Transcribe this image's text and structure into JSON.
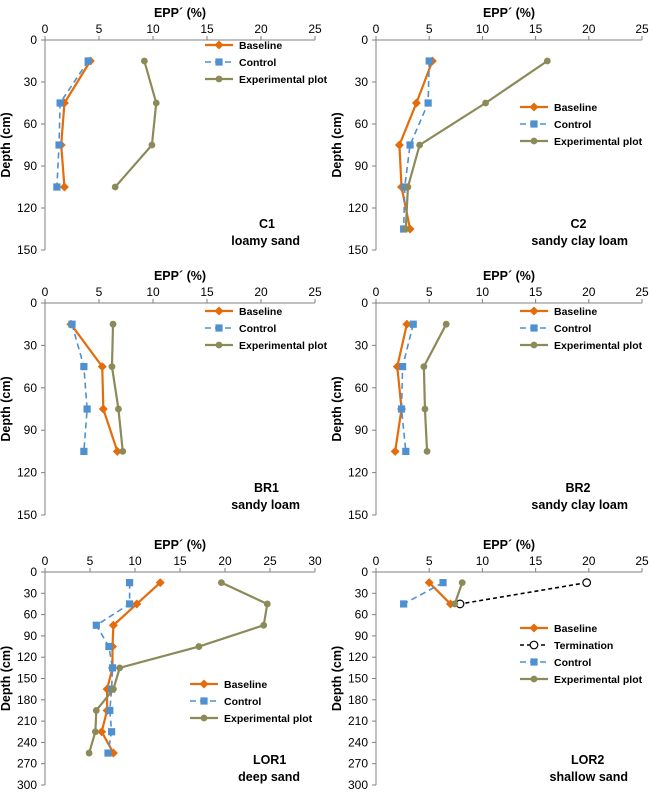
{
  "figure": {
    "x_axis_title": "EPP´ (%)",
    "y_axis_title": "Depth (cm)"
  },
  "colors": {
    "baseline": "#E46C0A",
    "control": "#4F90D1",
    "experimental": "#8B8A58",
    "termination": "#000000",
    "axis": "#808080"
  },
  "legend_labels": {
    "baseline": "Baseline",
    "control": "Control",
    "experimental": "Experimental plot",
    "termination": "Termination"
  },
  "chart_data": [
    {
      "type": "line",
      "id": "C1",
      "site": "C1",
      "soil": "loamy sand",
      "xlabel": "EPP´ (%)",
      "ylabel": "Depth (cm)",
      "xlim": [
        0,
        25
      ],
      "x_ticks": [
        0,
        5,
        10,
        15,
        20,
        25
      ],
      "ylim": [
        0,
        150
      ],
      "y_ticks": [
        0,
        30,
        60,
        90,
        120,
        150
      ],
      "legend": "top-right",
      "series": [
        {
          "name": "Baseline",
          "key": "baseline",
          "style": "solid",
          "marker": "diamond",
          "points": [
            [
              4.2,
              15
            ],
            [
              1.8,
              45
            ],
            [
              1.5,
              75
            ],
            [
              1.8,
              105
            ]
          ]
        },
        {
          "name": "Control",
          "key": "control",
          "style": "dashed",
          "marker": "square",
          "points": [
            [
              4.0,
              15
            ],
            [
              1.4,
              45
            ],
            [
              1.3,
              75
            ],
            [
              1.1,
              105
            ]
          ]
        },
        {
          "name": "Experimental plot",
          "key": "experimental",
          "style": "solid",
          "marker": "circle",
          "points": [
            [
              9.2,
              15
            ],
            [
              10.3,
              45
            ],
            [
              9.9,
              75
            ],
            [
              6.5,
              105
            ]
          ]
        }
      ]
    },
    {
      "type": "line",
      "id": "C2",
      "site": "C2",
      "soil": "sandy clay loam",
      "xlabel": "EPP´ (%)",
      "ylabel": "Depth (cm)",
      "xlim": [
        0,
        25
      ],
      "x_ticks": [
        0,
        5,
        10,
        15,
        20,
        25
      ],
      "ylim": [
        0,
        150
      ],
      "y_ticks": [
        0,
        30,
        60,
        90,
        120,
        150
      ],
      "legend": "middle-right",
      "series": [
        {
          "name": "Baseline",
          "key": "baseline",
          "style": "solid",
          "marker": "diamond",
          "points": [
            [
              5.3,
              15
            ],
            [
              3.8,
              45
            ],
            [
              2.2,
              75
            ],
            [
              2.4,
              105
            ],
            [
              3.2,
              135
            ]
          ]
        },
        {
          "name": "Control",
          "key": "control",
          "style": "dashed",
          "marker": "square",
          "points": [
            [
              5.0,
              15
            ],
            [
              4.9,
              45
            ],
            [
              3.2,
              75
            ],
            [
              2.7,
              105
            ],
            [
              2.6,
              135
            ]
          ]
        },
        {
          "name": "Experimental plot",
          "key": "experimental",
          "style": "solid",
          "marker": "circle",
          "points": [
            [
              16.1,
              15
            ],
            [
              10.3,
              45
            ],
            [
              4.1,
              75
            ],
            [
              3.0,
              105
            ],
            [
              2.8,
              135
            ]
          ]
        }
      ]
    },
    {
      "type": "line",
      "id": "BR1",
      "site": "BR1",
      "soil": "sandy loam",
      "xlabel": "EPP´ (%)",
      "ylabel": "Depth (cm)",
      "xlim": [
        0,
        25
      ],
      "x_ticks": [
        0,
        5,
        10,
        15,
        20,
        25
      ],
      "ylim": [
        0,
        150
      ],
      "y_ticks": [
        0,
        30,
        60,
        90,
        120,
        150
      ],
      "legend": "top-right",
      "series": [
        {
          "name": "Baseline",
          "key": "baseline",
          "style": "solid",
          "marker": "diamond",
          "points": [
            [
              2.4,
              15
            ],
            [
              5.3,
              45
            ],
            [
              5.4,
              75
            ],
            [
              6.7,
              105
            ]
          ]
        },
        {
          "name": "Control",
          "key": "control",
          "style": "dashed",
          "marker": "square",
          "points": [
            [
              2.5,
              15
            ],
            [
              3.6,
              45
            ],
            [
              3.9,
              75
            ],
            [
              3.6,
              105
            ]
          ]
        },
        {
          "name": "Experimental plot",
          "key": "experimental",
          "style": "solid",
          "marker": "circle",
          "points": [
            [
              6.3,
              15
            ],
            [
              6.2,
              45
            ],
            [
              6.8,
              75
            ],
            [
              7.2,
              105
            ]
          ]
        }
      ]
    },
    {
      "type": "line",
      "id": "BR2",
      "site": "BR2",
      "soil": "sandy clay loam",
      "xlabel": "EPP´ (%)",
      "ylabel": "Depth (cm)",
      "xlim": [
        0,
        25
      ],
      "x_ticks": [
        0,
        5,
        10,
        15,
        20,
        25
      ],
      "ylim": [
        0,
        150
      ],
      "y_ticks": [
        0,
        30,
        60,
        90,
        120,
        150
      ],
      "legend": "top-right",
      "series": [
        {
          "name": "Baseline",
          "key": "baseline",
          "style": "solid",
          "marker": "diamond",
          "points": [
            [
              2.9,
              15
            ],
            [
              2.0,
              45
            ],
            [
              2.4,
              75
            ],
            [
              1.8,
              105
            ]
          ]
        },
        {
          "name": "Control",
          "key": "control",
          "style": "dashed",
          "marker": "square",
          "points": [
            [
              3.5,
              15
            ],
            [
              2.5,
              45
            ],
            [
              2.4,
              75
            ],
            [
              2.8,
              105
            ]
          ]
        },
        {
          "name": "Experimental plot",
          "key": "experimental",
          "style": "solid",
          "marker": "circle",
          "points": [
            [
              6.6,
              15
            ],
            [
              4.5,
              45
            ],
            [
              4.6,
              75
            ],
            [
              4.8,
              105
            ]
          ]
        }
      ]
    },
    {
      "type": "line",
      "id": "LOR1",
      "site": "LOR1",
      "soil": "deep sand",
      "xlabel": "EPP´ (%)",
      "ylabel": "Depth (cm)",
      "xlim": [
        0,
        30
      ],
      "x_ticks": [
        0,
        5,
        10,
        15,
        20,
        25,
        30
      ],
      "ylim": [
        0,
        300
      ],
      "y_ticks": [
        0,
        30,
        60,
        90,
        120,
        150,
        180,
        210,
        240,
        270,
        300
      ],
      "legend": "middle-right",
      "series": [
        {
          "name": "Baseline",
          "key": "baseline",
          "style": "solid",
          "marker": "diamond",
          "points": [
            [
              12.8,
              15
            ],
            [
              10.2,
              45
            ],
            [
              7.6,
              75
            ],
            [
              7.5,
              105
            ],
            [
              7.5,
              135
            ],
            [
              6.9,
              165
            ],
            [
              6.9,
              195
            ],
            [
              6.3,
              225
            ],
            [
              7.6,
              255
            ]
          ]
        },
        {
          "name": "Control",
          "key": "control",
          "style": "dashed",
          "marker": "square",
          "points": [
            [
              9.4,
              15
            ],
            [
              9.4,
              45
            ],
            [
              5.7,
              75
            ],
            [
              7.1,
              105
            ],
            [
              7.5,
              135
            ],
            [
              7.4,
              165
            ],
            [
              7.2,
              195
            ],
            [
              7.4,
              225
            ],
            [
              7.0,
              255
            ]
          ]
        },
        {
          "name": "Experimental plot",
          "key": "experimental",
          "style": "solid",
          "marker": "circle",
          "points": [
            [
              19.6,
              15
            ],
            [
              24.7,
              45
            ],
            [
              24.3,
              75
            ],
            [
              17.1,
              105
            ],
            [
              8.3,
              135
            ],
            [
              7.6,
              165
            ],
            [
              5.7,
              195
            ],
            [
              5.6,
              225
            ],
            [
              4.9,
              255
            ]
          ]
        }
      ]
    },
    {
      "type": "line",
      "id": "LOR2",
      "site": "LOR2",
      "soil": "shallow sand",
      "xlabel": "EPP´ (%)",
      "ylabel": "Depth (cm)",
      "xlim": [
        0,
        25
      ],
      "x_ticks": [
        0,
        5,
        10,
        15,
        20,
        25
      ],
      "ylim": [
        0,
        300
      ],
      "y_ticks": [
        0,
        30,
        60,
        90,
        120,
        150,
        180,
        210,
        240,
        270,
        300
      ],
      "legend": "middle-right",
      "series": [
        {
          "name": "Baseline",
          "key": "baseline",
          "style": "solid",
          "marker": "diamond",
          "points": [
            [
              5.0,
              15
            ],
            [
              7.0,
              45
            ]
          ]
        },
        {
          "name": "Termination",
          "key": "termination",
          "style": "dashed",
          "marker": "open-circle",
          "points": [
            [
              19.8,
              15
            ],
            [
              7.9,
              45
            ]
          ]
        },
        {
          "name": "Control",
          "key": "control",
          "style": "dashed",
          "marker": "square",
          "points": [
            [
              6.3,
              15
            ],
            [
              2.6,
              45
            ]
          ]
        },
        {
          "name": "Experimental plot",
          "key": "experimental",
          "style": "solid",
          "marker": "circle",
          "points": [
            [
              8.1,
              15
            ],
            [
              7.4,
              45
            ]
          ]
        }
      ]
    }
  ]
}
